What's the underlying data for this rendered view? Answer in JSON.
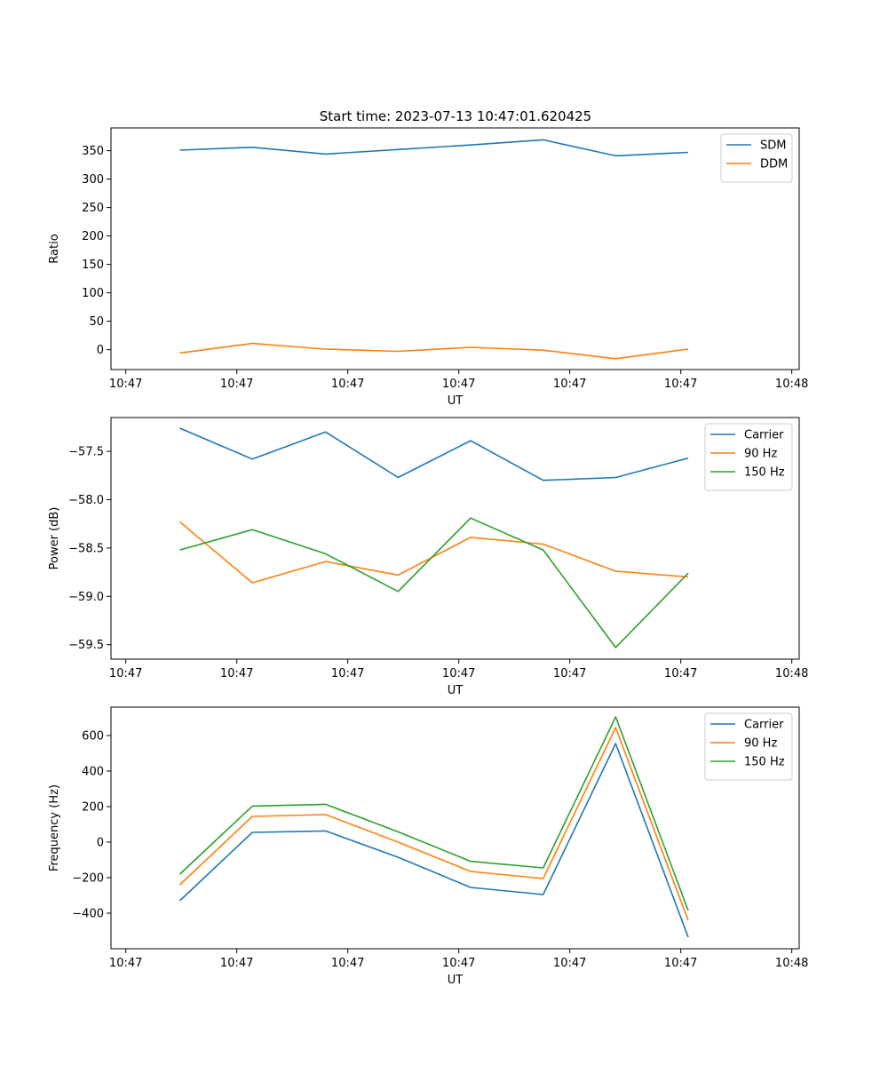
{
  "figure_title": "Start time: 2023-07-13 10:47:01.620425",
  "chart_data": [
    {
      "type": "line",
      "id": "ratio",
      "xlabel": "UT",
      "ylabel": "Ratio",
      "xlim": [
        0,
        9.3
      ],
      "ylim": [
        -35,
        390
      ],
      "xticks": [
        0.2,
        1.7,
        3.2,
        4.7,
        6.2,
        7.7,
        9.2
      ],
      "xtick_labels": [
        "10:47",
        "10:47",
        "10:47",
        "10:47",
        "10:47",
        "10:47",
        "10:48"
      ],
      "yticks": [
        0,
        50,
        100,
        150,
        200,
        250,
        300,
        350
      ],
      "ytick_labels": [
        "0",
        "50",
        "100",
        "150",
        "200",
        "250",
        "300",
        "350"
      ],
      "x": [
        0.93,
        1.91,
        2.9,
        3.88,
        4.86,
        5.84,
        6.82,
        7.8
      ],
      "series": [
        {
          "name": "SDM",
          "color": "#1f77b4",
          "values": [
            351,
            356,
            344,
            352,
            360,
            369,
            341,
            347
          ]
        },
        {
          "name": "DDM",
          "color": "#ff7f0e",
          "values": [
            -6,
            11,
            1,
            -3,
            4,
            -1,
            -16,
            1
          ]
        }
      ],
      "legend": "upper-right"
    },
    {
      "type": "line",
      "id": "power",
      "xlabel": "UT",
      "ylabel": "Power (dB)",
      "xlim": [
        0,
        9.3
      ],
      "ylim": [
        -59.65,
        -57.15
      ],
      "xticks": [
        0.2,
        1.7,
        3.2,
        4.7,
        6.2,
        7.7,
        9.2
      ],
      "xtick_labels": [
        "10:47",
        "10:47",
        "10:47",
        "10:47",
        "10:47",
        "10:47",
        "10:48"
      ],
      "yticks": [
        -59.5,
        -59.0,
        -58.5,
        -58.0,
        -57.5
      ],
      "ytick_labels": [
        "−59.5",
        "−59.0",
        "−58.5",
        "−58.0",
        "−57.5"
      ],
      "x": [
        0.93,
        1.91,
        2.9,
        3.88,
        4.86,
        5.84,
        6.82,
        7.8
      ],
      "series": [
        {
          "name": "Carrier",
          "color": "#1f77b4",
          "values": [
            -57.26,
            -57.58,
            -57.3,
            -57.77,
            -57.39,
            -57.8,
            -57.77,
            -57.57
          ]
        },
        {
          "name": "90 Hz",
          "color": "#ff7f0e",
          "values": [
            -58.23,
            -58.86,
            -58.64,
            -58.78,
            -58.39,
            -58.46,
            -58.74,
            -58.8
          ]
        },
        {
          "name": "150 Hz",
          "color": "#2ca02c",
          "values": [
            -58.52,
            -58.31,
            -58.56,
            -58.95,
            -58.19,
            -58.52,
            -59.53,
            -58.76
          ]
        }
      ],
      "legend": "upper-right"
    },
    {
      "type": "line",
      "id": "frequency",
      "xlabel": "UT",
      "ylabel": "Frequency (Hz)",
      "xlim": [
        0,
        9.3
      ],
      "ylim": [
        -600,
        760
      ],
      "xticks": [
        0.2,
        1.7,
        3.2,
        4.7,
        6.2,
        7.7,
        9.2
      ],
      "xtick_labels": [
        "10:47",
        "10:47",
        "10:47",
        "10:47",
        "10:47",
        "10:47",
        "10:48"
      ],
      "yticks": [
        -400,
        -200,
        0,
        200,
        400,
        600
      ],
      "ytick_labels": [
        "−400",
        "−200",
        "0",
        "200",
        "400",
        "600"
      ],
      "x": [
        0.93,
        1.91,
        2.9,
        3.88,
        4.86,
        5.84,
        6.82,
        7.8
      ],
      "series": [
        {
          "name": "Carrier",
          "color": "#1f77b4",
          "values": [
            -330,
            55,
            63,
            -85,
            -255,
            -295,
            555,
            -535
          ]
        },
        {
          "name": "90 Hz",
          "color": "#ff7f0e",
          "values": [
            -240,
            145,
            155,
            0,
            -165,
            -205,
            645,
            -440
          ]
        },
        {
          "name": "150 Hz",
          "color": "#2ca02c",
          "values": [
            -180,
            203,
            213,
            58,
            -108,
            -145,
            705,
            -385
          ]
        }
      ],
      "legend": "upper-right"
    }
  ]
}
